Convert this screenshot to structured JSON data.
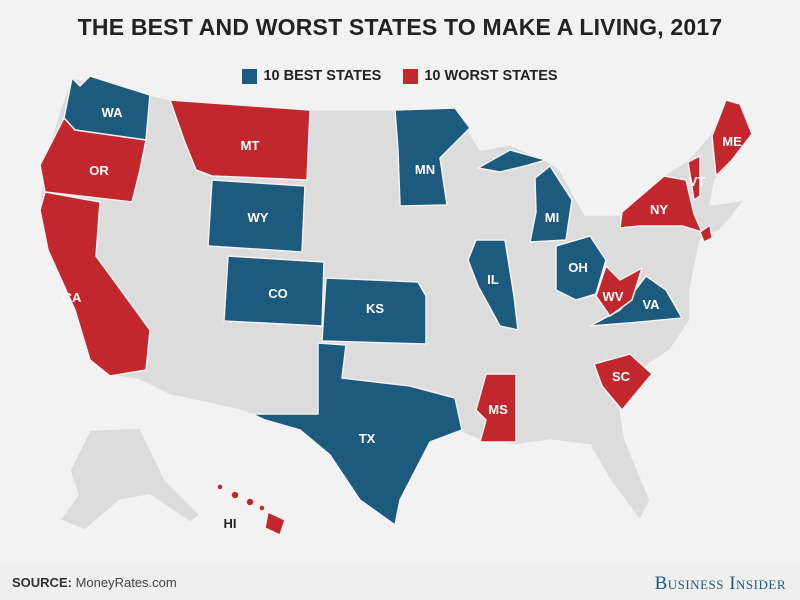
{
  "title": "THE BEST AND WORST STATES TO MAKE A LIVING, 2017",
  "legend": [
    {
      "label": "10 BEST STATES",
      "color": "#1d5b7e"
    },
    {
      "label": "10 WORST STATES",
      "color": "#c1272d"
    }
  ],
  "colors": {
    "best": "#1d5b7e",
    "worst": "#c1272d",
    "other": "#dcdcdc",
    "background": "#f2f2f2"
  },
  "best_states": [
    "WA",
    "WY",
    "CO",
    "KS",
    "TX",
    "MN",
    "IL",
    "MI",
    "OH",
    "VA"
  ],
  "worst_states": [
    "OR",
    "CA",
    "MT",
    "MS",
    "SC",
    "WV",
    "NY",
    "VT",
    "ME",
    "HI"
  ],
  "footer": {
    "source_label": "SOURCE:",
    "source_value": "MoneyRates.com",
    "brand": "Business Insider"
  }
}
